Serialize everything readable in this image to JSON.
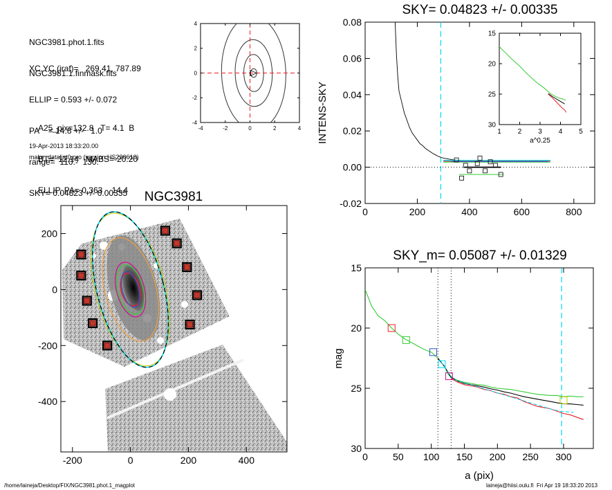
{
  "header": {
    "file_lines": [
      "NGC3981.phot.1.fits",
      "NGC3981.1.finmask.fits"
    ],
    "params_lines": [
      "XC,YC (iraf)=   269.41, 787.89",
      "ELLIP = 0.593 +/- 0.072",
      "PA    = 14.8 +/-   1.0",
      "range=  110.-  130.",
      "SKY= 0.04823 +/- 0.00335"
    ],
    "galaxy_lines": [
      "A25_pix=132.8   T= 4.1  B",
      "BT=  12.14   MABS=-20.20",
      "ELLIP, PA= 0.363    14.4"
    ],
    "date_line": "19-Apr-2013 18:33:20.00",
    "program_line": "make_datalist0.pro (version HS230610)"
  },
  "footer": {
    "path": "/home/laineja/Desktop/FIX/NGC3981.phot.1_magplot",
    "credit": "laineja@hiisi.oulu.fi  Fri Apr 19 18:33:20 2013"
  },
  "colors": {
    "cyan": "#00d8f0",
    "red": "#ee1c24",
    "green": "#33cc33",
    "blue": "#3050d0",
    "orange": "#f0a040",
    "yellow": "#c8c800",
    "magenta": "#d01090",
    "maroon": "#7a0a0a"
  },
  "chart_data": [
    {
      "id": "contour",
      "type": "contour",
      "title": "",
      "xlim": [
        -4,
        4
      ],
      "ylim": [
        -4,
        4
      ],
      "xticks": [
        "-4",
        "-2",
        "0",
        "2",
        "4"
      ],
      "yticks": [
        "4",
        "2",
        "0",
        "-2",
        "-4"
      ],
      "center": [
        0.3,
        0
      ],
      "contours": [
        {
          "rx": 0.25,
          "ry": 0.35,
          "tilt": 0
        },
        {
          "rx": 0.8,
          "ry": 1.5,
          "tilt": 0.15
        },
        {
          "rx": 1.5,
          "ry": 2.7,
          "tilt": 0.18
        },
        {
          "rx": 2.6,
          "ry": 4.6,
          "tilt": 0.2
        }
      ]
    },
    {
      "id": "sky",
      "type": "line",
      "title": "SKY= 0.04823 +/- 0.00335",
      "xlabel": "",
      "ylabel": "INTENS-SKY",
      "xlim": [
        0,
        880
      ],
      "ylim": [
        -0.02,
        0.08
      ],
      "xticks": [
        "0",
        "200",
        "400",
        "600",
        "800"
      ],
      "yticks": [
        "0.08",
        "0.06",
        "0.04",
        "0.02",
        "0.00",
        "-0.02"
      ],
      "vline_x": 290,
      "profile": {
        "x": [
          115,
          120,
          125,
          130,
          140,
          150,
          160,
          170,
          180,
          190,
          200,
          210,
          220,
          230,
          240,
          250,
          260,
          270,
          280,
          290,
          300,
          320,
          340,
          360,
          380,
          400,
          450,
          500,
          600,
          700
        ],
        "y": [
          0.08,
          0.062,
          0.05,
          0.042,
          0.036,
          0.03,
          0.026,
          0.022,
          0.019,
          0.017,
          0.015,
          0.013,
          0.012,
          0.0105,
          0.0095,
          0.0085,
          0.0075,
          0.0068,
          0.006,
          0.0055,
          0.005,
          0.0045,
          0.004,
          0.0038,
          0.0036,
          0.0035,
          0.0034,
          0.0035,
          0.0036,
          0.0036
        ]
      },
      "sky_segments": [
        {
          "color": "#000000",
          "x": [
            380,
            520
          ],
          "y": 0.0,
          "w": 1.8
        },
        {
          "color": "#33cc33",
          "x": [
            360,
            530
          ],
          "y": -0.004,
          "w": 1
        },
        {
          "color": "#33cc33",
          "x": [
            300,
            710
          ],
          "y": 0.0028,
          "w": 1
        },
        {
          "color": "#00d8f0",
          "x": [
            300,
            710
          ],
          "y": 0.0037,
          "w": 1.5
        },
        {
          "color": "#ee1c24",
          "x": [
            300,
            710
          ],
          "y": 0.0033,
          "w": 1
        },
        {
          "color": "#3050d0",
          "x": [
            330,
            700
          ],
          "y": 0.0031,
          "w": 1
        }
      ],
      "sky_boxes": {
        "x": [
          350,
          370,
          385,
          400,
          430,
          440,
          460,
          480,
          500,
          520
        ],
        "y": [
          0.004,
          -0.006,
          0.001,
          -0.002,
          0.002,
          0.005,
          -0.002,
          0.003,
          0.001,
          -0.004
        ]
      },
      "inset": {
        "xlabel": "a^0.25",
        "xlim": [
          1,
          5
        ],
        "ylim": [
          15,
          30
        ],
        "xticks": [
          "1",
          "2",
          "3",
          "4",
          "5"
        ],
        "yticks": [
          "15",
          "20",
          "25",
          "30"
        ],
        "series": [
          {
            "color": "#33cc33",
            "x": [
              1.0,
              1.3,
              1.6,
              2.0,
              2.4,
              2.8,
              3.2,
              3.5,
              3.7,
              3.9,
              4.1,
              4.25
            ],
            "y": [
              17.2,
              18.2,
              19.2,
              20.4,
              21.8,
              23.0,
              24.0,
              24.9,
              25.3,
              25.6,
              25.8,
              26.0
            ]
          },
          {
            "color": "#000000",
            "x": [
              3.4,
              3.6,
              3.8,
              4.0,
              4.2
            ],
            "y": [
              24.9,
              25.4,
              25.8,
              26.2,
              26.6
            ]
          },
          {
            "color": "#ee1c24",
            "x": [
              3.4,
              3.6,
              3.8,
              4.0,
              4.2,
              4.28
            ],
            "y": [
              25.0,
              25.6,
              26.3,
              27.0,
              27.6,
              28.0
            ]
          }
        ]
      }
    },
    {
      "id": "image",
      "type": "scatter",
      "title": "NGC3981",
      "xlim": [
        -240,
        540
      ],
      "ylim": [
        -580,
        300
      ],
      "xticks": [
        "-200",
        "0",
        "200",
        "400"
      ],
      "yticks": [
        "200",
        "0",
        "-200",
        "-400"
      ],
      "mask_boxes": {
        "x": [
          -170,
          -170,
          -150,
          -130,
          -80,
          120,
          160,
          195,
          230,
          205
        ],
        "y": [
          125,
          50,
          -40,
          -120,
          -200,
          210,
          165,
          80,
          -20,
          -125
        ]
      },
      "ellipses": [
        {
          "color": "#ee1c24",
          "a": 60,
          "b": 32,
          "pa": 14.8,
          "w": 1.5
        },
        {
          "color": "#33cc33",
          "a": 90,
          "b": 44,
          "pa": 14.8,
          "w": 1.2
        },
        {
          "color": "#3050d0",
          "a": 65,
          "b": 28,
          "pa": 14.8,
          "w": 1.2
        },
        {
          "color": "#d01090",
          "a": 100,
          "b": 48,
          "pa": 14.8,
          "w": 1.3
        },
        {
          "color": "#f0a040",
          "a": 190,
          "b": 88,
          "pa": 14.8,
          "w": 1.2
        },
        {
          "color": "#c8c800",
          "a": 280,
          "b": 120,
          "pa": 14.8,
          "w": 1
        },
        {
          "color": "#00d8f0",
          "a": 285,
          "b": 115,
          "pa": 14.4,
          "w": 1.6
        },
        {
          "color": "#000000",
          "a": 285,
          "b": 115,
          "pa": 14.4,
          "w": 1.2
        }
      ]
    },
    {
      "id": "mag",
      "type": "line",
      "title": "SKY_m=  0.05087 +/- 0.01329",
      "xlabel": "a (pix)",
      "ylabel": "mag",
      "xlim": [
        0,
        345
      ],
      "ylim": [
        15,
        30
      ],
      "xticks": [
        "0",
        "50",
        "100",
        "150",
        "200",
        "250",
        "300"
      ],
      "yticks": [
        "15",
        "20",
        "25",
        "30"
      ],
      "dotted_x": [
        110,
        130
      ],
      "dashed_x": [
        297
      ],
      "series": [
        {
          "color": "#33cc33",
          "x": [
            0,
            5,
            10,
            20,
            30,
            40,
            50,
            60,
            70,
            80,
            90,
            100,
            110,
            120,
            125,
            130,
            140,
            150,
            160,
            170,
            180,
            190,
            200,
            210,
            220,
            230,
            240,
            250,
            260,
            270,
            280,
            290,
            300,
            310,
            320,
            330
          ],
          "y": [
            16.8,
            17.5,
            18.2,
            19.0,
            19.4,
            20.0,
            20.5,
            20.9,
            21.2,
            21.5,
            21.8,
            22.0,
            22.5,
            23.2,
            23.8,
            24.1,
            24.35,
            24.5,
            24.6,
            24.7,
            24.75,
            24.9,
            25.0,
            25.05,
            25.1,
            25.2,
            25.3,
            25.4,
            25.5,
            25.55,
            25.6,
            25.6,
            25.7,
            25.65,
            25.7,
            25.7
          ]
        },
        {
          "color": "#000000",
          "x": [
            110,
            120,
            130,
            140,
            150,
            160,
            170,
            180,
            190,
            200,
            210,
            220,
            230,
            240,
            250,
            260,
            270,
            280,
            290,
            300,
            310,
            320,
            330
          ],
          "y": [
            22.5,
            23.2,
            24.1,
            24.4,
            24.6,
            24.7,
            24.8,
            24.9,
            25.05,
            25.15,
            25.3,
            25.4,
            25.55,
            25.7,
            25.8,
            25.9,
            26.0,
            26.1,
            26.2,
            26.3,
            26.3,
            26.35,
            26.4
          ]
        },
        {
          "color": "#ee1c24",
          "x": [
            130,
            140,
            150,
            160,
            170,
            180,
            190,
            200,
            210,
            220,
            230,
            240,
            250,
            260,
            270,
            280,
            290,
            300,
            310,
            320,
            330
          ],
          "y": [
            24.2,
            24.5,
            24.7,
            24.8,
            24.9,
            25.1,
            25.2,
            25.4,
            25.5,
            25.7,
            25.8,
            26.1,
            26.3,
            26.5,
            26.6,
            26.7,
            26.9,
            27.1,
            27.2,
            27.4,
            27.6
          ]
        },
        {
          "color": "#00d8f0",
          "x": [
            115,
            125,
            135,
            285,
            295,
            305,
            315
          ],
          "y": [
            22.8,
            23.7,
            24.3,
            26.8,
            26.9,
            26.95,
            27.0
          ]
        }
      ],
      "boxes": [
        {
          "color": "#ee1c24",
          "x": 40,
          "y": 20.0
        },
        {
          "color": "#33cc33",
          "x": 62,
          "y": 21.0
        },
        {
          "color": "#3050d0",
          "x": 103,
          "y": 22.0
        },
        {
          "color": "#00d8f0",
          "x": 116,
          "y": 23.0
        },
        {
          "color": "#d01090",
          "x": 127,
          "y": 24.0
        },
        {
          "color": "#c8c800",
          "x": 300,
          "y": 26.0
        }
      ]
    }
  ]
}
